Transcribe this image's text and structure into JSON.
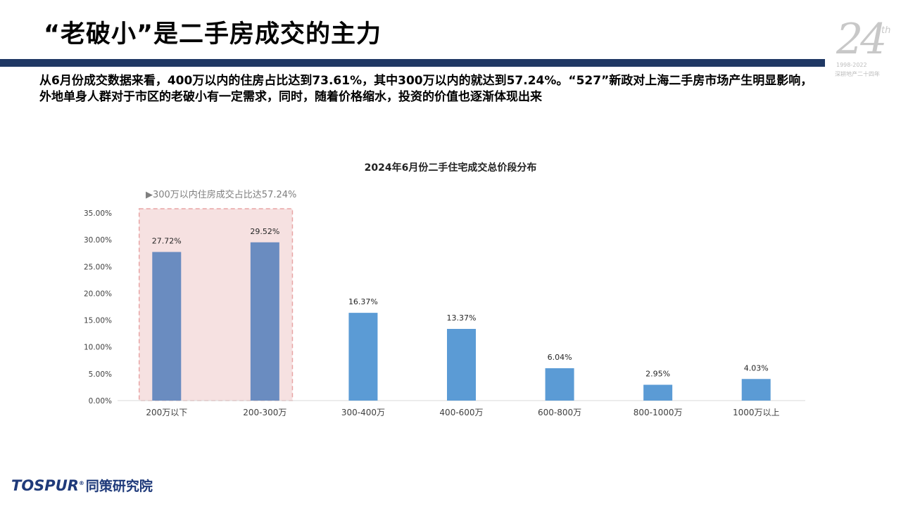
{
  "header": {
    "title": "“老破小”是二手房成交的主力",
    "accent_color": "#1f3864"
  },
  "anniversary": {
    "number": "24",
    "suffix": "th",
    "years": "1998-2022",
    "subtitle": "深耕地产二十四年"
  },
  "summary": {
    "text": "从6月份成交数据来看，400万以内的住房占比达到73.61%，其中300万以内的就达到57.24%。“527”新政对上海二手房市场产生明显影响，外地单身人群对于市区的老破小有一定需求，同时，随着价格缩水，投资的价值也逐渐体现出来"
  },
  "chart_data": {
    "type": "bar",
    "title": "2024年6月份二手住宅成交总价段分布",
    "categories": [
      "200万以下",
      "200-300万",
      "300-400万",
      "400-600万",
      "600-800万",
      "800-1000万",
      "1000万以上"
    ],
    "values": [
      27.72,
      29.52,
      16.37,
      13.37,
      6.04,
      2.95,
      4.03
    ],
    "value_labels": [
      "27.72%",
      "29.52%",
      "16.37%",
      "13.37%",
      "6.04%",
      "2.95%",
      "4.03%"
    ],
    "y_ticks": [
      "0.00%",
      "5.00%",
      "10.00%",
      "15.00%",
      "20.00%",
      "25.00%",
      "30.00%",
      "35.00%"
    ],
    "ylim": [
      0,
      35
    ],
    "grid": false,
    "legend": "none",
    "highlighted_categories": [
      0,
      1
    ],
    "bar_color": "#5b9bd5",
    "highlight_bar_color": "#6a8cc0",
    "highlight_box_color": "#f6e1e1",
    "annotation": "▶300万以内住房成交占比达57.24%"
  },
  "footer": {
    "logo_latin": "TOSPUR",
    "logo_reg": "®",
    "logo_cn": "同策研究院"
  }
}
